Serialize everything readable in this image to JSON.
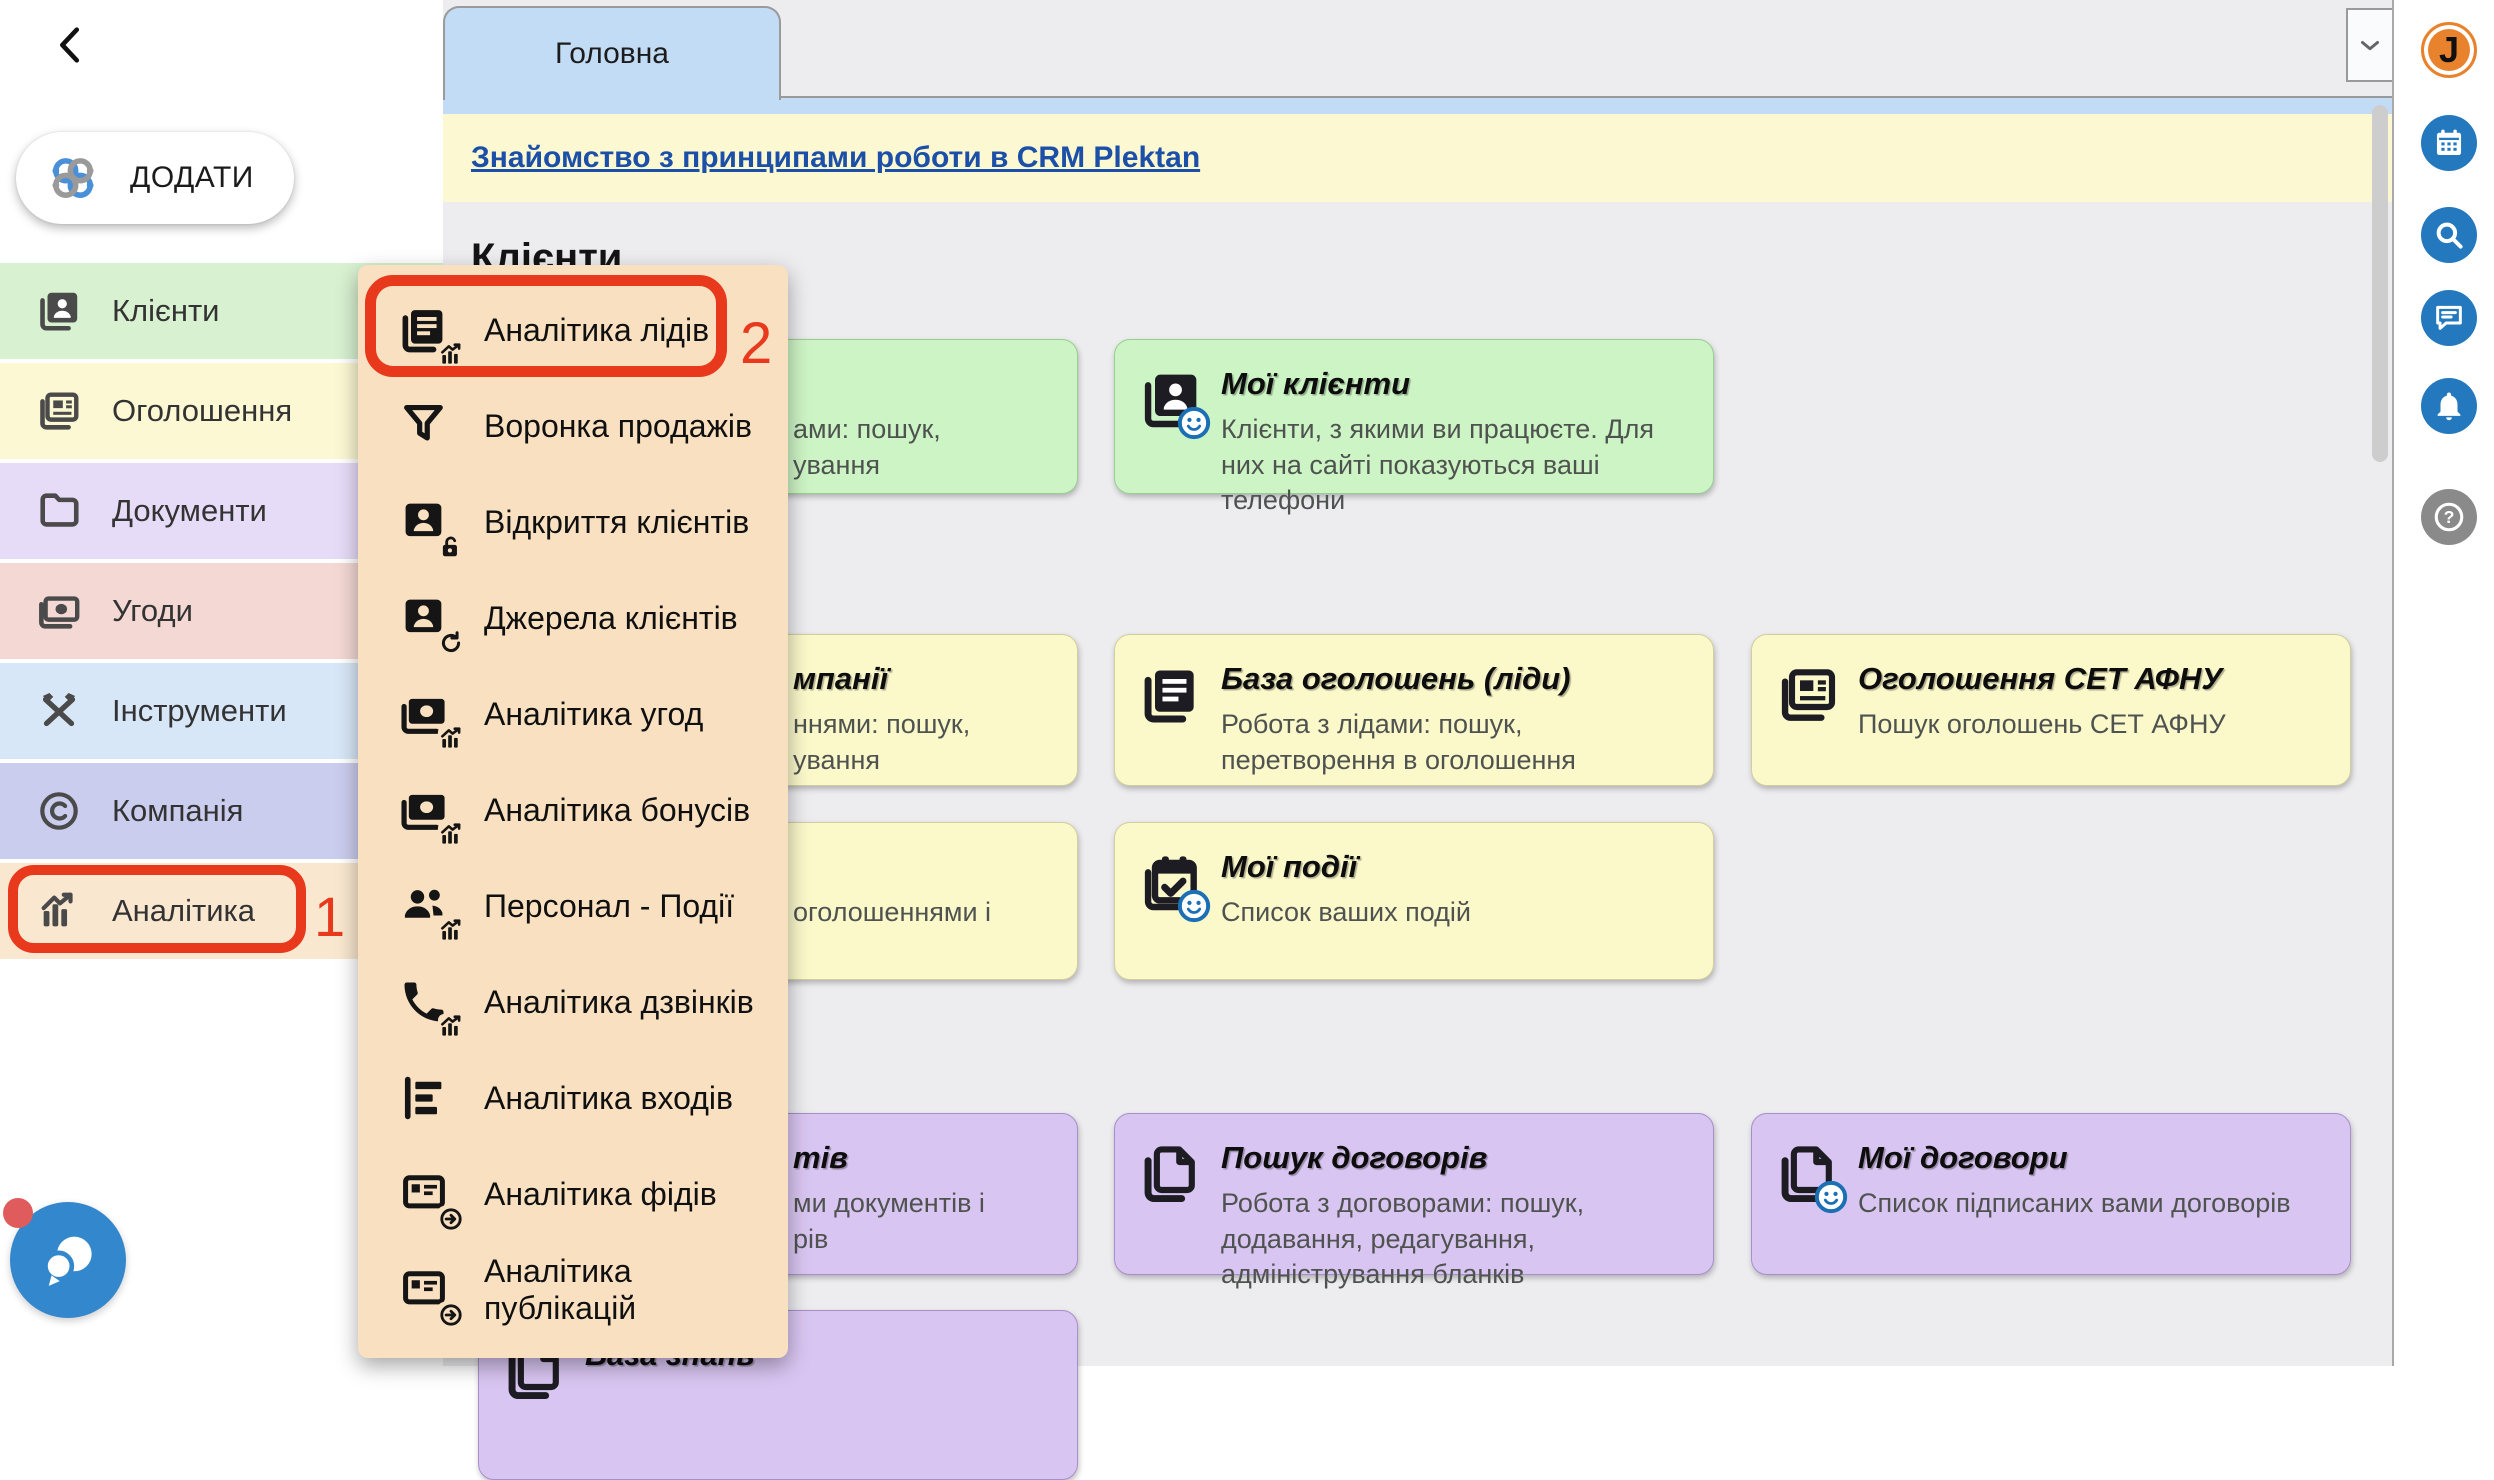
{
  "app": {
    "name": "CRM Plektan"
  },
  "colors": {
    "accent_red": "#e8391d",
    "rail_blue": "#2478bd",
    "rail_gray": "#8a8a8a",
    "avatar_orange": "#e8822d",
    "tab_blue": "#c3dcf5",
    "banner_yellow": "#fcf8d2",
    "link_blue": "#1b4fa8",
    "popup_bg": "#f8e0c1",
    "fab_blue": "#3387cc",
    "fab_dot": "#e05c5c"
  },
  "card_colors": {
    "green": {
      "bg": "#cdf4c5",
      "border": "#98cf90"
    },
    "yellow": {
      "bg": "#fbf8ca",
      "border": "#d2cf9e"
    },
    "purple": {
      "bg": "#d9c5f1",
      "border": "#a78fcc"
    }
  },
  "sidebar": {
    "add_label": "ДОДАТИ",
    "items": [
      {
        "label": "Клієнти",
        "icon": "contacts",
        "bg": "#d8f1d0"
      },
      {
        "label": "Оголошення",
        "icon": "newspaper",
        "bg": "#fcf8d3"
      },
      {
        "label": "Документи",
        "icon": "folder",
        "bg": "#e7dcf8"
      },
      {
        "label": "Угоди",
        "icon": "money",
        "bg": "#f3d8d4"
      },
      {
        "label": "Інструменти",
        "icon": "tools",
        "bg": "#d8e7f8"
      },
      {
        "label": "Компанія",
        "icon": "copyright",
        "bg": "#cbcdee"
      },
      {
        "label": "Аналітика",
        "icon": "analytics",
        "bg": "#f9e7cf",
        "highlight": true,
        "step": "1"
      }
    ]
  },
  "popup": {
    "items": [
      {
        "label": "Аналітика лідів",
        "icon": "doc-lines",
        "badge": "b-chart",
        "highlight": true,
        "step": "2"
      },
      {
        "label": "Воронка продажів",
        "icon": "funnel"
      },
      {
        "label": "Відкриття клієнтів",
        "icon": "person-card",
        "badge": "b-lock"
      },
      {
        "label": "Джерела клієнтів",
        "icon": "person-card",
        "badge": "b-refresh"
      },
      {
        "label": "Аналітика угод",
        "icon": "money2",
        "badge": "b-chart"
      },
      {
        "label": "Аналітика бонусів",
        "icon": "money2",
        "badge": "b-chart"
      },
      {
        "label": "Персонал - Події",
        "icon": "people",
        "badge": "b-chart"
      },
      {
        "label": "Аналітика дзвінків",
        "icon": "phone",
        "badge": "b-chart"
      },
      {
        "label": "Аналітика входів",
        "icon": "bars"
      },
      {
        "label": "Аналітика фідів",
        "icon": "card",
        "badge": "b-arrow"
      },
      {
        "label": "Аналітика публікацій",
        "icon": "card",
        "badge": "b-arrow"
      }
    ]
  },
  "tabs": {
    "active": "Головна"
  },
  "banner": {
    "link_text": "Знайомство з принципами роботи в CRM Plektan"
  },
  "content": {
    "section_title": "Клієнти",
    "cards": [
      {
        "row": 0,
        "col": 0,
        "color": "green",
        "partial": true,
        "desc_lines": [
          "ами: пошук,",
          "ування"
        ]
      },
      {
        "row": 0,
        "col": 1,
        "color": "green",
        "title": "Мої клієнти",
        "icon": "contacts",
        "smiley": true,
        "desc": "Клієнти, з якими ви працюєте. Для них на сайті показуються ваші телефони"
      },
      {
        "row": 1,
        "col": 0,
        "color": "yellow",
        "partial": true,
        "title_fragment": "мпанії",
        "desc_lines": [
          "ннями: пошук,",
          "ування"
        ]
      },
      {
        "row": 1,
        "col": 1,
        "color": "yellow",
        "title": "База оголошень (ліди)",
        "icon": "doc-lines",
        "desc": "Робота з лідами: пошук, перетворення в оголошення"
      },
      {
        "row": 1,
        "col": 2,
        "color": "yellow",
        "title": "Оголошення СЕТ АФНУ",
        "icon": "newspaper",
        "desc": "Пошук оголошень СЕТ АФНУ"
      },
      {
        "row": 2,
        "col": 0,
        "color": "yellow",
        "partial": true,
        "desc_lines": [
          "оголошеннями і"
        ]
      },
      {
        "row": 2,
        "col": 1,
        "color": "yellow",
        "title": "Мої події",
        "icon": "calendar-check",
        "smiley": true,
        "desc": "Список ваших подій"
      },
      {
        "row": 3,
        "col": 0,
        "color": "purple",
        "partial": true,
        "title_fragment": "тів",
        "desc_lines": [
          "ми документів і",
          "рів"
        ]
      },
      {
        "row": 3,
        "col": 1,
        "color": "purple",
        "title": "Пошук договорів",
        "icon": "pages",
        "desc": "Робота з договорами: пошук, додавання, редагування, адміністрування бланків"
      },
      {
        "row": 3,
        "col": 2,
        "color": "purple",
        "title": "Мої договори",
        "icon": "pages",
        "smiley": true,
        "desc": "Список підписаних вами договорів"
      },
      {
        "row": 4,
        "col": 0,
        "color": "purple",
        "title": "База знань",
        "icon": "pages",
        "clipped": true
      }
    ]
  },
  "rail": {
    "avatar_initial": "J",
    "icons": [
      {
        "name": "calendar"
      },
      {
        "name": "search"
      },
      {
        "name": "chat"
      },
      {
        "name": "bell"
      },
      {
        "name": "help",
        "gray": true
      }
    ]
  }
}
